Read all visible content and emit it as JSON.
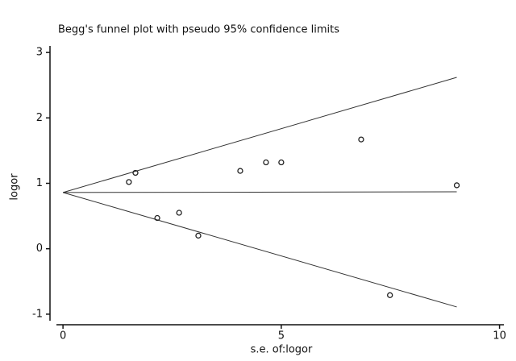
{
  "chart_data": {
    "type": "scatter",
    "title": "Begg's funnel plot with pseudo 95% confidence limits",
    "x_label": "s.e. of:logor",
    "y_label": "logor",
    "x": [
      1.51,
      1.66,
      2.16,
      2.66,
      3.1,
      4.06,
      4.65,
      5.0,
      6.83,
      7.49,
      9.02
    ],
    "values": [
      1.02,
      1.16,
      0.47,
      0.55,
      0.2,
      1.19,
      1.32,
      1.32,
      1.67,
      -0.71,
      0.97
    ],
    "lines": [
      {
        "x": [
          0,
          9.02
        ],
        "values": [
          0.86,
          2.62
        ]
      },
      {
        "x": [
          0,
          9.02
        ],
        "values": [
          0.86,
          0.87
        ]
      },
      {
        "x": [
          0,
          9.02
        ],
        "values": [
          0.86,
          -0.89
        ]
      }
    ],
    "color": "#222222",
    "xlim": [
      -0.15,
      10.1
    ],
    "ylim": [
      -1.1,
      3.1
    ],
    "xticks": [
      0,
      5,
      10
    ],
    "yticks": [
      -1,
      0,
      1,
      2,
      3
    ],
    "grid": false
  }
}
